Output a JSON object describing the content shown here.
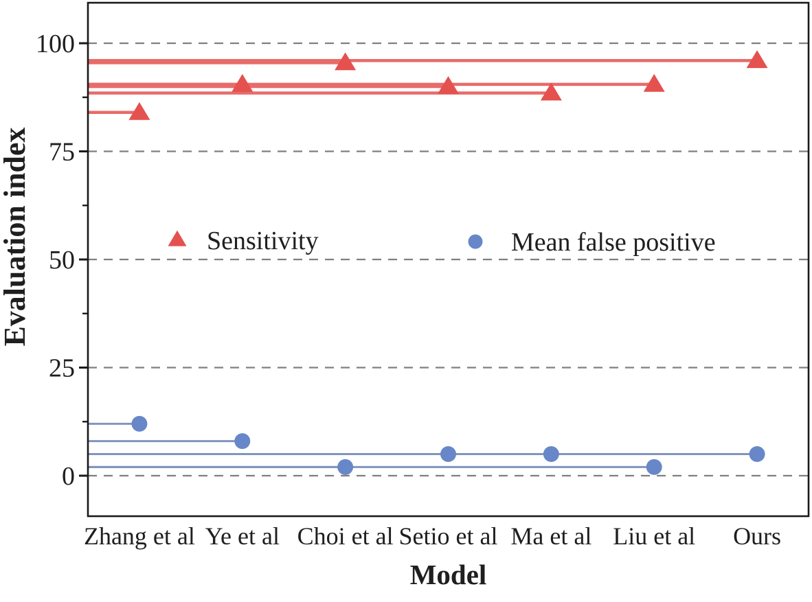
{
  "chart_data": {
    "type": "lollipop",
    "title": "",
    "xlabel": "Model",
    "ylabel": "Evaluation index",
    "categories": [
      "Zhang et al",
      "Ye et al",
      "Choi et al",
      "Setio et al",
      "Ma et al",
      "Liu et al",
      "Ours"
    ],
    "series": [
      {
        "name": "Sensitivity",
        "marker": "triangle",
        "marker_color": "#e4514f",
        "line_color": "#e96a6a",
        "values": [
          84,
          90.5,
          95.5,
          90,
          88.5,
          90.5,
          96
        ]
      },
      {
        "name": "Mean false positive",
        "marker": "circle",
        "marker_color": "#6787c8",
        "line_color": "#8095bd",
        "values": [
          12,
          8,
          2,
          5,
          5,
          2,
          5
        ]
      }
    ],
    "yticks": [
      0,
      25,
      50,
      75,
      100
    ],
    "yticks_minor": [
      12.5,
      37.5,
      62.5,
      87.5
    ],
    "ylim": [
      -9.4,
      109.4
    ],
    "grid": "horizontal-dashed-at-major-ticks",
    "legend_position": "inside-middle",
    "colors": {
      "grid": "#7f7f7f",
      "axis": "#1a1a1a",
      "text": "#1f1f1f"
    }
  }
}
